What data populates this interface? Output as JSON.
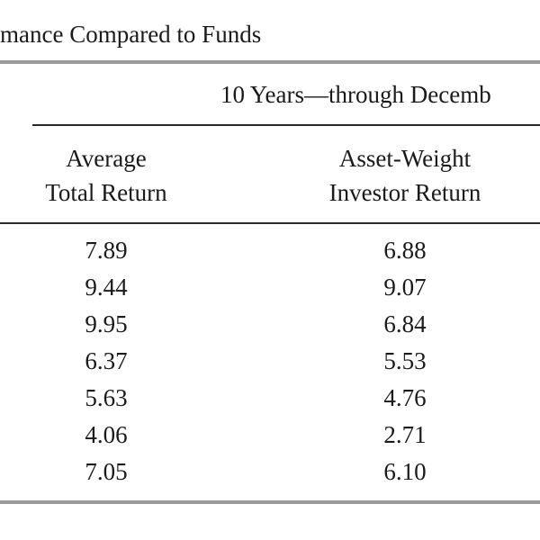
{
  "title": "mance Compared to Funds",
  "span_header": "10 Years—through Decemb",
  "columns": [
    {
      "line1": "Average",
      "line2": "Total Return"
    },
    {
      "line1": "Asset-Weight",
      "line2": "Investor Return"
    }
  ],
  "rows": [
    [
      "7.89",
      "6.88"
    ],
    [
      "9.44",
      "9.07"
    ],
    [
      "9.95",
      "6.84"
    ],
    [
      "6.37",
      "5.53"
    ],
    [
      "5.63",
      "4.76"
    ],
    [
      "4.06",
      "2.71"
    ],
    [
      "7.05",
      "6.10"
    ]
  ]
}
